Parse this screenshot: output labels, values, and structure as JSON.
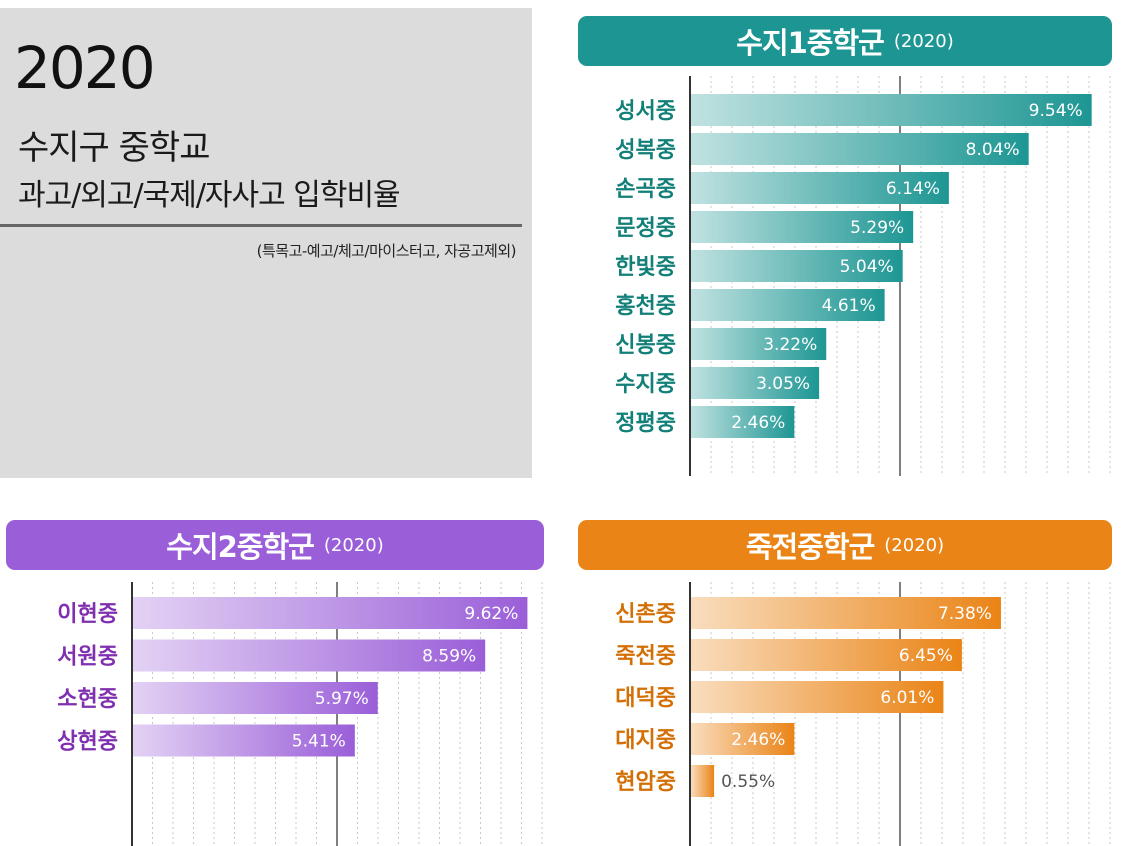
{
  "title": {
    "year": "2020",
    "main": "수지구 중학교",
    "sub": "과고/외고/국제/자사고 입학비율",
    "note": "(특목고-예고/체고/마이스터고, 자공고제외)"
  },
  "colors": {
    "suji1": "#1d9693",
    "suji2": "#9a5ed8",
    "jukjeon": "#ea8416",
    "suji1_label": "#128078",
    "suji2_label": "#7f2fb0",
    "jukjeon_label": "#d46f05"
  },
  "panels": {
    "suji1": {
      "name": "수지1중학군",
      "year": "(2020)"
    },
    "suji2": {
      "name": "수지2중학군",
      "year": "(2020)"
    },
    "jukjeon": {
      "name": "죽전중학군",
      "year": "(2020)"
    }
  },
  "chart_data": [
    {
      "type": "bar",
      "orientation": "horizontal",
      "title": "수지1중학군 (2020)",
      "categories": [
        "성서중",
        "성복중",
        "손곡중",
        "문정중",
        "한빛중",
        "홍천중",
        "신봉중",
        "수지중",
        "정평중"
      ],
      "values": [
        9.54,
        8.04,
        6.14,
        5.29,
        5.04,
        4.61,
        3.22,
        3.05,
        2.46
      ],
      "value_labels": [
        "9.54%",
        "8.04%",
        "6.14%",
        "5.29%",
        "5.04%",
        "4.61%",
        "3.22%",
        "3.05%",
        "2.46%"
      ],
      "unit": "%",
      "xlim": [
        0,
        10
      ],
      "grid": true
    },
    {
      "type": "bar",
      "orientation": "horizontal",
      "title": "수지2중학군 (2020)",
      "categories": [
        "이현중",
        "서원중",
        "소현중",
        "상현중"
      ],
      "values": [
        9.62,
        8.59,
        5.97,
        5.41
      ],
      "value_labels": [
        "9.62%",
        "8.59%",
        "5.97%",
        "5.41%"
      ],
      "unit": "%",
      "xlim": [
        0,
        10
      ],
      "grid": true
    },
    {
      "type": "bar",
      "orientation": "horizontal",
      "title": "죽전중학군 (2020)",
      "categories": [
        "신촌중",
        "죽전중",
        "대덕중",
        "대지중",
        "현암중"
      ],
      "values": [
        7.38,
        6.45,
        6.01,
        2.46,
        0.55
      ],
      "value_labels": [
        "7.38%",
        "6.45%",
        "6.01%",
        "2.46%",
        "0.55%"
      ],
      "unit": "%",
      "xlim": [
        0,
        10
      ],
      "grid": true
    }
  ]
}
